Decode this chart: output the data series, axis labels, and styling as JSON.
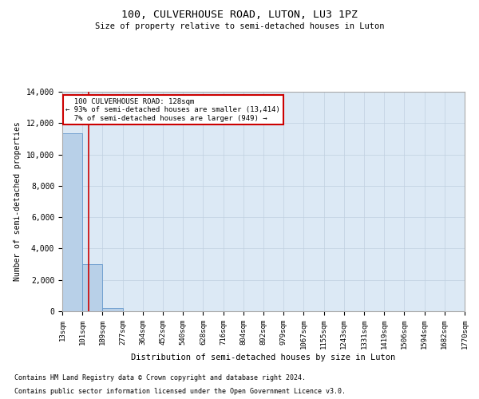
{
  "title": "100, CULVERHOUSE ROAD, LUTON, LU3 1PZ",
  "subtitle": "Size of property relative to semi-detached houses in Luton",
  "xlabel": "Distribution of semi-detached houses by size in Luton",
  "ylabel": "Number of semi-detached properties",
  "property_label": "100 CULVERHOUSE ROAD: 128sqm",
  "smaller_pct": "93% of semi-detached houses are smaller (13,414)",
  "larger_pct": "7% of semi-detached houses are larger (949)",
  "property_size": 128,
  "bin_edges": [
    13,
    101,
    189,
    277,
    364,
    452,
    540,
    628,
    716,
    804,
    892,
    979,
    1067,
    1155,
    1243,
    1331,
    1419,
    1506,
    1594,
    1682,
    1770
  ],
  "bin_labels": [
    "13sqm",
    "101sqm",
    "189sqm",
    "277sqm",
    "364sqm",
    "452sqm",
    "540sqm",
    "628sqm",
    "716sqm",
    "804sqm",
    "892sqm",
    "979sqm",
    "1067sqm",
    "1155sqm",
    "1243sqm",
    "1331sqm",
    "1419sqm",
    "1506sqm",
    "1594sqm",
    "1682sqm",
    "1770sqm"
  ],
  "bar_heights": [
    11350,
    3020,
    180,
    5,
    1,
    0,
    0,
    0,
    0,
    0,
    0,
    0,
    0,
    0,
    0,
    0,
    0,
    0,
    0,
    0
  ],
  "bar_color": "#b8d0e8",
  "bar_edge_color": "#6699cc",
  "red_line_color": "#cc0000",
  "annotation_box_edge_color": "#cc0000",
  "axes_bg_color": "#dce9f5",
  "background_color": "#ffffff",
  "grid_color": "#c0d0e0",
  "ylim": [
    0,
    14000
  ],
  "yticks": [
    0,
    2000,
    4000,
    6000,
    8000,
    10000,
    12000,
    14000
  ],
  "footnote1": "Contains HM Land Registry data © Crown copyright and database right 2024.",
  "footnote2": "Contains public sector information licensed under the Open Government Licence v3.0."
}
